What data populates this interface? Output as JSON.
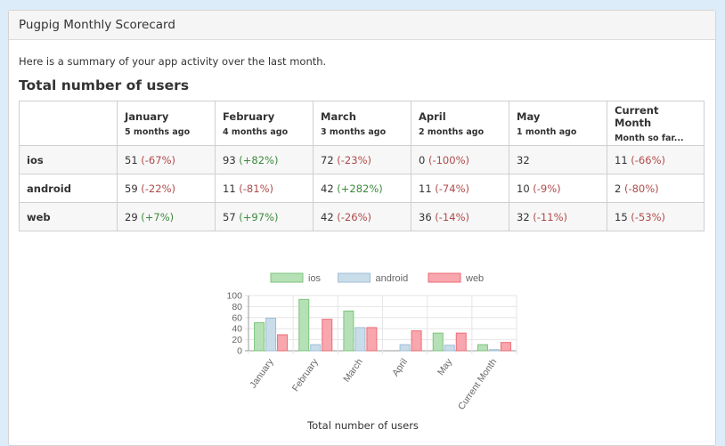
{
  "panel": {
    "title": "Pugpig Monthly Scorecard"
  },
  "intro": "Here is a summary of your app activity over the last month.",
  "section_title": "Total number of users",
  "table": {
    "columns": [
      {
        "name": "January",
        "sub": "5 months ago"
      },
      {
        "name": "February",
        "sub": "4 months ago"
      },
      {
        "name": "March",
        "sub": "3 months ago"
      },
      {
        "name": "April",
        "sub": "2 months ago"
      },
      {
        "name": "May",
        "sub": "1 month ago"
      },
      {
        "name": "Current Month",
        "sub": "Month so far..."
      }
    ],
    "rows": [
      {
        "label": "ios",
        "cells": [
          {
            "value": "51",
            "change": "(-67%)",
            "trend": "neg"
          },
          {
            "value": "93",
            "change": "(+82%)",
            "trend": "pos"
          },
          {
            "value": "72",
            "change": "(-23%)",
            "trend": "neg"
          },
          {
            "value": "0",
            "change": "(-100%)",
            "trend": "neg"
          },
          {
            "value": "32",
            "change": "",
            "trend": ""
          },
          {
            "value": "11",
            "change": "(-66%)",
            "trend": "neg"
          }
        ]
      },
      {
        "label": "android",
        "cells": [
          {
            "value": "59",
            "change": "(-22%)",
            "trend": "neg"
          },
          {
            "value": "11",
            "change": "(-81%)",
            "trend": "neg"
          },
          {
            "value": "42",
            "change": "(+282%)",
            "trend": "pos"
          },
          {
            "value": "11",
            "change": "(-74%)",
            "trend": "neg"
          },
          {
            "value": "10",
            "change": "(-9%)",
            "trend": "neg"
          },
          {
            "value": "2",
            "change": "(-80%)",
            "trend": "neg"
          }
        ]
      },
      {
        "label": "web",
        "cells": [
          {
            "value": "29",
            "change": "(+7%)",
            "trend": "pos"
          },
          {
            "value": "57",
            "change": "(+97%)",
            "trend": "pos"
          },
          {
            "value": "42",
            "change": "(-26%)",
            "trend": "neg"
          },
          {
            "value": "36",
            "change": "(-14%)",
            "trend": "neg"
          },
          {
            "value": "32",
            "change": "(-11%)",
            "trend": "neg"
          },
          {
            "value": "15",
            "change": "(-53%)",
            "trend": "neg"
          }
        ]
      }
    ]
  },
  "chart_caption": "Total number of users",
  "chart_data": {
    "type": "bar",
    "categories": [
      "January",
      "February",
      "March",
      "April",
      "May",
      "Current Month"
    ],
    "series": [
      {
        "name": "ios",
        "values": [
          51,
          93,
          72,
          0,
          32,
          11
        ],
        "fill": "#b6e0b6",
        "stroke": "#7cc47c"
      },
      {
        "name": "android",
        "values": [
          59,
          11,
          42,
          11,
          10,
          2
        ],
        "fill": "#c9dcea",
        "stroke": "#9fbfd6"
      },
      {
        "name": "web",
        "values": [
          29,
          57,
          42,
          36,
          32,
          15
        ],
        "fill": "#f7a7ad",
        "stroke": "#ee6b76"
      }
    ],
    "ylim": [
      0,
      100
    ],
    "yticks": [
      0,
      20,
      40,
      60,
      80,
      100
    ],
    "legend": "top",
    "grid": true
  }
}
